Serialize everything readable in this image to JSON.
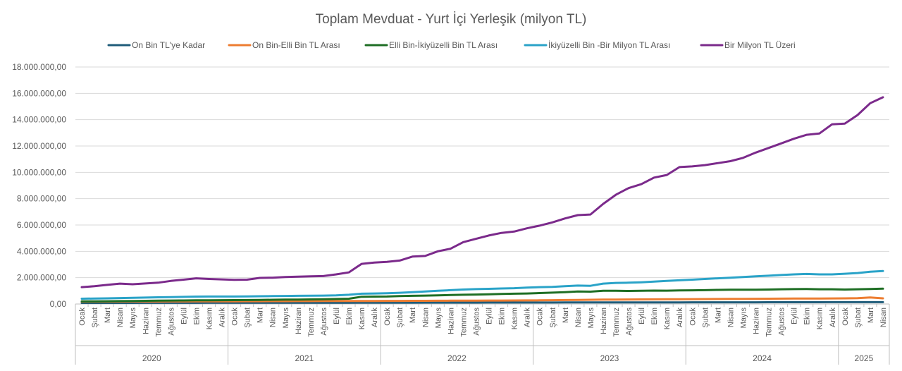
{
  "chart_data": {
    "type": "line",
    "title": "Toplam Mevduat - Yurt İçi Yerleşik (milyon TL)",
    "ylim": [
      0,
      18000000
    ],
    "yticks": [
      "0,00",
      "2.000.000,00",
      "4.000.000,00",
      "6.000.000,00",
      "8.000.000,00",
      "10.000.000,00",
      "12.000.000,00",
      "14.000.000,00",
      "16.000.000,00",
      "18.000.000,00"
    ],
    "grid": true,
    "legend_position": "top",
    "months": [
      "Ocak",
      "Şubat",
      "Mart",
      "Nisan",
      "Mayıs",
      "Haziran",
      "Temmuz",
      "Ağustos",
      "Eylül",
      "Ekim",
      "Kasım",
      "Aralık"
    ],
    "years": [
      {
        "label": "2020",
        "count": 12
      },
      {
        "label": "2021",
        "count": 12
      },
      {
        "label": "2022",
        "count": 12
      },
      {
        "label": "2023",
        "count": 12
      },
      {
        "label": "2024",
        "count": 12
      },
      {
        "label": "2025",
        "count": 4
      }
    ],
    "series": [
      {
        "name": "On Bin TL'ye Kadar",
        "color": "#1f5c7a",
        "values": [
          80000,
          80000,
          81000,
          82000,
          83000,
          84000,
          85000,
          86000,
          87000,
          88000,
          89000,
          90000,
          90000,
          91000,
          92000,
          93000,
          94000,
          95000,
          96000,
          97000,
          98000,
          99000,
          100000,
          101000,
          102000,
          103000,
          104000,
          105000,
          106000,
          107000,
          108000,
          109000,
          110000,
          111000,
          112000,
          113000,
          114000,
          115000,
          116000,
          117000,
          118000,
          119000,
          120000,
          121000,
          122000,
          123000,
          124000,
          125000,
          126000,
          127000,
          128000,
          129000,
          130000,
          131000,
          132000,
          133000,
          134000,
          135000,
          136000,
          137000,
          138000,
          139000,
          140000,
          140000
        ]
      },
      {
        "name": "On Bin-Elli Bin TL Arası",
        "color": "#ed7d31",
        "values": [
          170000,
          172000,
          175000,
          180000,
          185000,
          188000,
          190000,
          192000,
          195000,
          198000,
          200000,
          202000,
          205000,
          207000,
          210000,
          212000,
          215000,
          218000,
          220000,
          223000,
          226000,
          228000,
          230000,
          232000,
          235000,
          238000,
          240000,
          243000,
          246000,
          250000,
          253000,
          256000,
          260000,
          265000,
          270000,
          275000,
          280000,
          290000,
          300000,
          310000,
          320000,
          330000,
          340000,
          345000,
          350000,
          355000,
          360000,
          365000,
          370000,
          375000,
          380000,
          385000,
          390000,
          395000,
          400000,
          405000,
          410000,
          415000,
          420000,
          425000,
          430000,
          440000,
          500000,
          430000
        ]
      },
      {
        "name": "Elli Bin-İkiyüzelli Bin TL Arası",
        "color": "#1e6e24",
        "values": [
          200000,
          205000,
          210000,
          220000,
          230000,
          240000,
          250000,
          260000,
          270000,
          280000,
          285000,
          290000,
          295000,
          300000,
          310000,
          320000,
          330000,
          340000,
          350000,
          360000,
          380000,
          400000,
          550000,
          560000,
          570000,
          600000,
          620000,
          640000,
          660000,
          680000,
          700000,
          720000,
          740000,
          760000,
          780000,
          800000,
          830000,
          860000,
          900000,
          950000,
          940000,
          1000000,
          1000000,
          990000,
          1000000,
          1020000,
          1010000,
          1030000,
          1040000,
          1050000,
          1070000,
          1080000,
          1080000,
          1090000,
          1100000,
          1120000,
          1130000,
          1140000,
          1120000,
          1120000,
          1100000,
          1120000,
          1140000,
          1160000
        ]
      },
      {
        "name": "İkiyüzelli Bin -Bir Milyon  TL Arası",
        "color": "#2aa3c8",
        "values": [
          400000,
          420000,
          430000,
          450000,
          470000,
          490000,
          510000,
          520000,
          540000,
          560000,
          570000,
          570000,
          570000,
          580000,
          590000,
          600000,
          610000,
          620000,
          630000,
          640000,
          660000,
          700000,
          780000,
          800000,
          820000,
          850000,
          900000,
          950000,
          1000000,
          1050000,
          1100000,
          1130000,
          1150000,
          1180000,
          1200000,
          1250000,
          1280000,
          1300000,
          1350000,
          1400000,
          1380000,
          1550000,
          1600000,
          1620000,
          1650000,
          1700000,
          1750000,
          1800000,
          1850000,
          1900000,
          1950000,
          2000000,
          2050000,
          2100000,
          2150000,
          2200000,
          2250000,
          2280000,
          2250000,
          2250000,
          2300000,
          2350000,
          2450000,
          2500000
        ]
      },
      {
        "name": "Bir Milyon TL Üzeri",
        "color": "#7b2a8b",
        "values": [
          1280000,
          1350000,
          1450000,
          1550000,
          1500000,
          1560000,
          1620000,
          1750000,
          1850000,
          1950000,
          1900000,
          1870000,
          1830000,
          1850000,
          1980000,
          2000000,
          2050000,
          2080000,
          2100000,
          2120000,
          2250000,
          2400000,
          3050000,
          3150000,
          3200000,
          3300000,
          3600000,
          3650000,
          4000000,
          4200000,
          4700000,
          4950000,
          5200000,
          5400000,
          5500000,
          5750000,
          5950000,
          6200000,
          6500000,
          6750000,
          6800000,
          7600000,
          8300000,
          8800000,
          9100000,
          9600000,
          9800000,
          10400000,
          10450000,
          10550000,
          10700000,
          10850000,
          11100000,
          11500000,
          11850000,
          12200000,
          12550000,
          12850000,
          12950000,
          13650000,
          13700000,
          14350000,
          15250000,
          15700000
        ]
      }
    ]
  }
}
